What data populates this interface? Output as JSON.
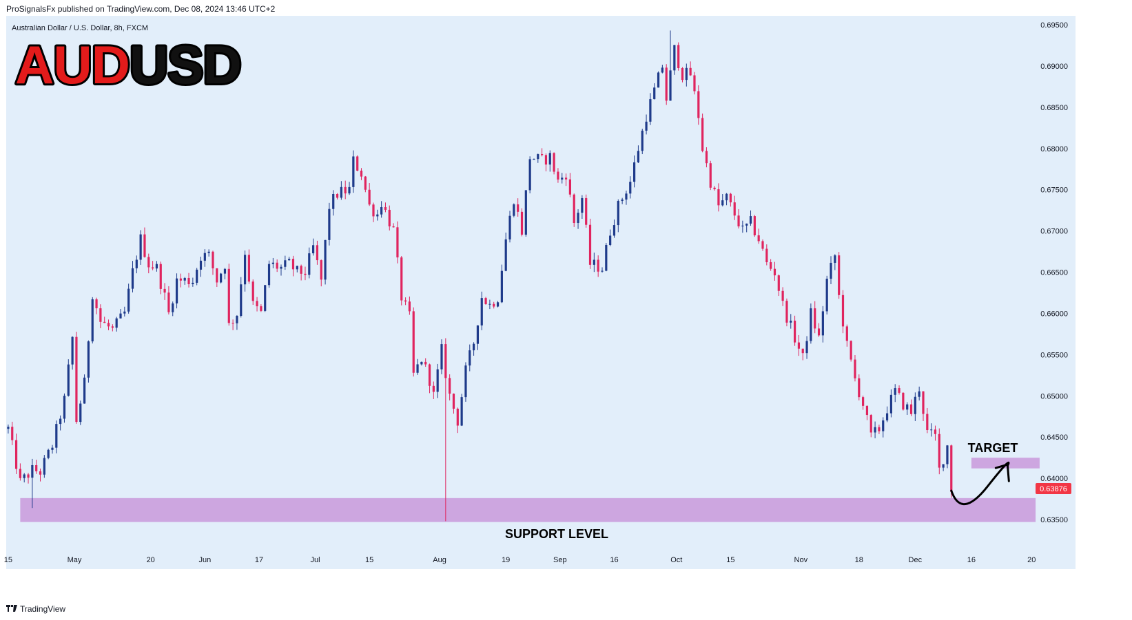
{
  "header": {
    "published_by": "ProSignalsFx published on TradingView.com, Dec 08, 2024 13:46 UTC+2"
  },
  "symbol_line": "Australian Dollar / U.S. Dollar, 8h, FXCM",
  "big_title": {
    "part1": "AUD",
    "part2": "USD",
    "color1": "#e31b1b",
    "color2": "#111111"
  },
  "annotations": {
    "support": "SUPPORT LEVEL",
    "target": "TARGET"
  },
  "current_price": {
    "label": "0.63876",
    "value": 0.63876,
    "color": "#f23645"
  },
  "footer": {
    "brand": "TradingView"
  },
  "chart_data": {
    "type": "candlestick",
    "title": "AUDUSD",
    "symbol": "Australian Dollar / U.S. Dollar",
    "timeframe": "8h",
    "ylim": [
      0.6325,
      0.6955
    ],
    "y_ticks": [
      "0.69500",
      "0.69000",
      "0.68500",
      "0.68000",
      "0.67500",
      "0.67000",
      "0.66500",
      "0.66000",
      "0.65500",
      "0.65000",
      "0.64500",
      "0.64000",
      "0.63500"
    ],
    "x_ticks": [
      {
        "label": "15",
        "t": 0.0
      },
      {
        "label": "May",
        "t": 16.5
      },
      {
        "label": "20",
        "t": 35.5
      },
      {
        "label": "Jun",
        "t": 49.0
      },
      {
        "label": "17",
        "t": 62.5
      },
      {
        "label": "Jul",
        "t": 76.5
      },
      {
        "label": "15",
        "t": 90.0
      },
      {
        "label": "Aug",
        "t": 107.5
      },
      {
        "label": "19",
        "t": 124.0
      },
      {
        "label": "Sep",
        "t": 137.5
      },
      {
        "label": "16",
        "t": 151.0
      },
      {
        "label": "Oct",
        "t": 166.5
      },
      {
        "label": "15",
        "t": 180.0
      },
      {
        "label": "Nov",
        "t": 197.5
      },
      {
        "label": "18",
        "t": 212.0
      },
      {
        "label": "Dec",
        "t": 226.0
      },
      {
        "label": "16",
        "t": 240.0
      },
      {
        "label": "20",
        "t": 255.0
      }
    ],
    "x_range": [
      -0.5,
      256.5
    ],
    "path_points": [
      [
        0,
        0.646
      ],
      [
        3,
        0.6395
      ],
      [
        6,
        0.641
      ],
      [
        8,
        0.6408
      ],
      [
        11,
        0.644
      ],
      [
        14,
        0.6495
      ],
      [
        16,
        0.657
      ],
      [
        17,
        0.647
      ],
      [
        19,
        0.6515
      ],
      [
        21,
        0.6625
      ],
      [
        23,
        0.659
      ],
      [
        26,
        0.658
      ],
      [
        29,
        0.66
      ],
      [
        31,
        0.665
      ],
      [
        33,
        0.669
      ],
      [
        35,
        0.666
      ],
      [
        37,
        0.6655
      ],
      [
        39,
        0.662
      ],
      [
        40,
        0.66
      ],
      [
        42,
        0.664
      ],
      [
        44,
        0.664
      ],
      [
        46,
        0.664
      ],
      [
        48,
        0.667
      ],
      [
        50,
        0.667
      ],
      [
        52,
        0.664
      ],
      [
        54,
        0.666
      ],
      [
        55,
        0.6585
      ],
      [
        57,
        0.66
      ],
      [
        59,
        0.6675
      ],
      [
        61,
        0.661
      ],
      [
        63,
        0.66
      ],
      [
        65,
        0.666
      ],
      [
        68,
        0.6655
      ],
      [
        70,
        0.666
      ],
      [
        72,
        0.665
      ],
      [
        74,
        0.665
      ],
      [
        76,
        0.668
      ],
      [
        78,
        0.664
      ],
      [
        80,
        0.673
      ],
      [
        82,
        0.6745
      ],
      [
        85,
        0.675
      ],
      [
        86,
        0.6785
      ],
      [
        88,
        0.677
      ],
      [
        90,
        0.673
      ],
      [
        92,
        0.672
      ],
      [
        93,
        0.6735
      ],
      [
        96,
        0.67
      ],
      [
        98,
        0.662
      ],
      [
        100,
        0.6595
      ],
      [
        101,
        0.6525
      ],
      [
        103,
        0.6545
      ],
      [
        105,
        0.652
      ],
      [
        106,
        0.65
      ],
      [
        108,
        0.6555
      ],
      [
        110,
        0.65
      ],
      [
        112,
        0.647
      ],
      [
        114,
        0.653
      ],
      [
        116,
        0.6565
      ],
      [
        118,
        0.662
      ],
      [
        120,
        0.661
      ],
      [
        122,
        0.662
      ],
      [
        124,
        0.669
      ],
      [
        126,
        0.674
      ],
      [
        128,
        0.67
      ],
      [
        130,
        0.679
      ],
      [
        133,
        0.6785
      ],
      [
        135,
        0.679
      ],
      [
        137,
        0.676
      ],
      [
        139,
        0.677
      ],
      [
        141,
        0.671
      ],
      [
        143,
        0.674
      ],
      [
        145,
        0.666
      ],
      [
        148,
        0.6655
      ],
      [
        150,
        0.67
      ],
      [
        152,
        0.673
      ],
      [
        155,
        0.676
      ],
      [
        157,
        0.68
      ],
      [
        159,
        0.684
      ],
      [
        161,
        0.687
      ],
      [
        163,
        0.69
      ],
      [
        164,
        0.686
      ],
      [
        166,
        0.692
      ],
      [
        168,
        0.689
      ],
      [
        170,
        0.689
      ],
      [
        172,
        0.684
      ],
      [
        173,
        0.68
      ],
      [
        175,
        0.676
      ],
      [
        177,
        0.673
      ],
      [
        179,
        0.674
      ],
      [
        181,
        0.672
      ],
      [
        183,
        0.67
      ],
      [
        185,
        0.671
      ],
      [
        187,
        0.669
      ],
      [
        189,
        0.666
      ],
      [
        191,
        0.665
      ],
      [
        193,
        0.661
      ],
      [
        196,
        0.657
      ],
      [
        198,
        0.6545
      ],
      [
        200,
        0.66
      ],
      [
        202,
        0.657
      ],
      [
        204,
        0.664
      ],
      [
        206,
        0.667
      ],
      [
        207,
        0.662
      ],
      [
        209,
        0.656
      ],
      [
        211,
        0.652
      ],
      [
        213,
        0.649
      ],
      [
        215,
        0.645
      ],
      [
        217,
        0.646
      ],
      [
        219,
        0.6485
      ],
      [
        221,
        0.6505
      ],
      [
        223,
        0.649
      ],
      [
        225,
        0.648
      ],
      [
        227,
        0.651
      ],
      [
        229,
        0.6455
      ],
      [
        231,
        0.645
      ],
      [
        232,
        0.641
      ],
      [
        234,
        0.644
      ],
      [
        235,
        0.6388
      ]
    ],
    "wick_events": [
      {
        "t": 6,
        "low": 0.6364
      },
      {
        "t": 109,
        "low": 0.6348
      },
      {
        "t": 165,
        "high": 0.6943
      }
    ],
    "candle_count": 236,
    "up_color": "#1e3a8a",
    "down_color": "#e0245e",
    "zones": [
      {
        "name": "support",
        "y0": 0.6347,
        "y1": 0.6376,
        "t0": 3,
        "t1": 256,
        "color": "#cda6e0"
      },
      {
        "name": "target",
        "y0": 0.6412,
        "y1": 0.6425,
        "t0": 240,
        "t1": 257,
        "color": "#cda6e0"
      }
    ],
    "projection_arrow": {
      "points": [
        [
          235,
          0.6385
        ],
        [
          237.5,
          0.6365
        ],
        [
          244,
          0.639
        ],
        [
          249,
          0.6415
        ]
      ]
    }
  }
}
